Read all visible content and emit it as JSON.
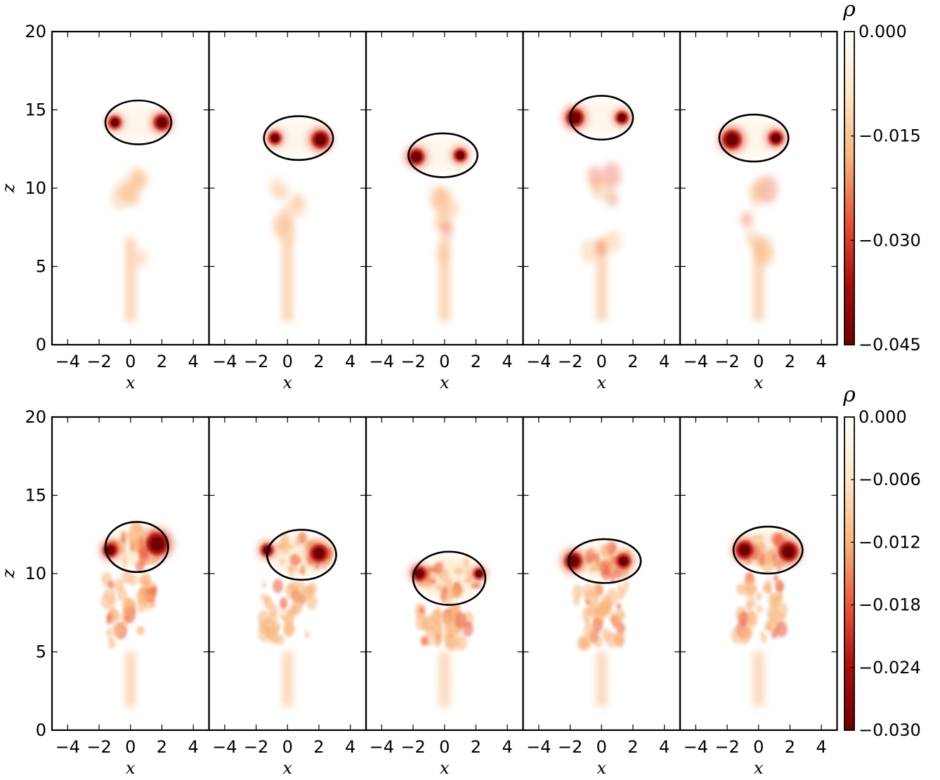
{
  "chart_data": [
    {
      "type": "heatmap",
      "row": "top",
      "x_axis": {
        "label": "x",
        "range": [
          -5,
          5
        ],
        "ticks": [
          -4,
          -2,
          0,
          2,
          4
        ]
      },
      "y_axis": {
        "label": "z",
        "range": [
          0,
          20
        ],
        "ticks": [
          0,
          5,
          10,
          15,
          20
        ]
      },
      "colorbar": {
        "label": "ρ",
        "range": [
          -0.045,
          0.0
        ],
        "ticks": [
          "0.000",
          "−0.015",
          "−0.030",
          "−0.045"
        ],
        "colors": [
          "#ffffff",
          "#fde8c8",
          "#f8b47c",
          "#e8583a",
          "#a80e0e",
          "#6e0000"
        ]
      },
      "panels": [
        {
          "contour": {
            "cx": 0.5,
            "cz": 14.2,
            "rx": 2.1,
            "rz": 1.4
          },
          "vortices": [
            {
              "x": -1.0,
              "z": 14.2,
              "r": 0.4
            },
            {
              "x": 2.0,
              "z": 14.2,
              "r": 0.5
            }
          ],
          "wake_top": 11.0
        },
        {
          "contour": {
            "cx": 0.7,
            "cz": 13.2,
            "rx": 2.2,
            "rz": 1.4
          },
          "vortices": [
            {
              "x": -0.8,
              "z": 13.2,
              "r": 0.4
            },
            {
              "x": 2.1,
              "z": 13.1,
              "r": 0.55
            }
          ],
          "wake_top": 10.5
        },
        {
          "contour": {
            "cx": -0.1,
            "cz": 12.1,
            "rx": 2.2,
            "rz": 1.4
          },
          "vortices": [
            {
              "x": -1.8,
              "z": 12.0,
              "r": 0.5
            },
            {
              "x": 1.0,
              "z": 12.1,
              "r": 0.4
            }
          ],
          "wake_top": 9.5
        },
        {
          "contour": {
            "cx": 0.0,
            "cz": 14.5,
            "rx": 2.0,
            "rz": 1.4
          },
          "vortices": [
            {
              "x": -1.7,
              "z": 14.5,
              "r": 0.55
            },
            {
              "x": 1.3,
              "z": 14.5,
              "r": 0.4
            }
          ],
          "wake_top": 11.5
        },
        {
          "contour": {
            "cx": -0.3,
            "cz": 13.2,
            "rx": 2.2,
            "rz": 1.5
          },
          "vortices": [
            {
              "x": -1.7,
              "z": 13.1,
              "r": 0.6
            },
            {
              "x": 1.1,
              "z": 13.2,
              "r": 0.45
            }
          ],
          "wake_top": 10.5
        }
      ]
    },
    {
      "type": "heatmap",
      "row": "bottom",
      "x_axis": {
        "label": "x",
        "range": [
          -5,
          5
        ],
        "ticks": [
          -4,
          -2,
          0,
          2,
          4
        ]
      },
      "y_axis": {
        "label": "z",
        "range": [
          0,
          20
        ],
        "ticks": [
          0,
          5,
          10,
          15,
          20
        ]
      },
      "colorbar": {
        "label": "ρ",
        "range": [
          -0.03,
          0.0
        ],
        "ticks": [
          "0.000",
          "−0.006",
          "−0.012",
          "−0.018",
          "−0.024",
          "−0.030"
        ],
        "colors": [
          "#ffffff",
          "#fde8c8",
          "#f8b47c",
          "#e8583a",
          "#a80e0e",
          "#6e0000"
        ]
      },
      "panels": [
        {
          "contour": {
            "cx": 0.4,
            "cz": 11.7,
            "rx": 2.0,
            "rz": 1.6
          },
          "vortices": [
            {
              "x": -1.3,
              "z": 11.5,
              "r": 0.45
            },
            {
              "x": 1.7,
              "z": 11.9,
              "r": 0.7
            }
          ],
          "wake_top": 9.8
        },
        {
          "contour": {
            "cx": 0.9,
            "cz": 11.2,
            "rx": 2.2,
            "rz": 1.6
          },
          "vortices": [
            {
              "x": -1.3,
              "z": 11.5,
              "r": 0.4
            },
            {
              "x": 2.0,
              "z": 11.3,
              "r": 0.55
            }
          ],
          "wake_top": 9.3
        },
        {
          "contour": {
            "cx": 0.3,
            "cz": 9.7,
            "rx": 2.3,
            "rz": 1.7
          },
          "vortices": [
            {
              "x": -1.6,
              "z": 10.0,
              "r": 0.45
            },
            {
              "x": 2.2,
              "z": 10.0,
              "r": 0.35
            }
          ],
          "wake_top": 7.8
        },
        {
          "contour": {
            "cx": 0.2,
            "cz": 10.8,
            "rx": 2.3,
            "rz": 1.4
          },
          "vortices": [
            {
              "x": -1.8,
              "z": 10.8,
              "r": 0.55
            },
            {
              "x": 1.4,
              "z": 10.8,
              "r": 0.45
            }
          ],
          "wake_top": 9.3
        },
        {
          "contour": {
            "cx": 0.6,
            "cz": 11.5,
            "rx": 2.2,
            "rz": 1.5
          },
          "vortices": [
            {
              "x": -0.9,
              "z": 11.5,
              "r": 0.55
            },
            {
              "x": 1.9,
              "z": 11.4,
              "r": 0.6
            }
          ],
          "wake_top": 9.8
        }
      ]
    }
  ]
}
